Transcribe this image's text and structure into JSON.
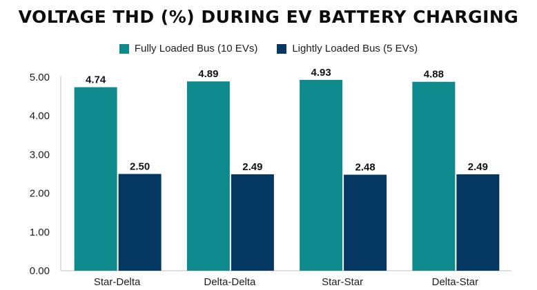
{
  "chart_data": {
    "type": "bar",
    "title": "VOLTAGE THD (%) DURING EV BATTERY CHARGING",
    "categories": [
      "Star-Delta",
      "Delta-Delta",
      "Star-Star",
      "Delta-Star"
    ],
    "series": [
      {
        "name": "Fully Loaded Bus (10 EVs)",
        "values": [
          4.74,
          4.89,
          4.93,
          4.88
        ],
        "labels": [
          "4.74",
          "4.89",
          "4.93",
          "4.88"
        ],
        "color": "#0e8a8c"
      },
      {
        "name": "Lightly Loaded Bus (5 EVs)",
        "values": [
          2.5,
          2.49,
          2.48,
          2.49
        ],
        "labels": [
          "2.50",
          "2.49",
          "2.48",
          "2.49"
        ],
        "color": "#053763"
      }
    ],
    "yticks": [
      "0.00",
      "1.00",
      "2.00",
      "3.00",
      "4.00",
      "5.00"
    ],
    "ylim": [
      0,
      5
    ],
    "xlabel": "",
    "ylabel": "",
    "grid": false,
    "legend_position": "top"
  }
}
